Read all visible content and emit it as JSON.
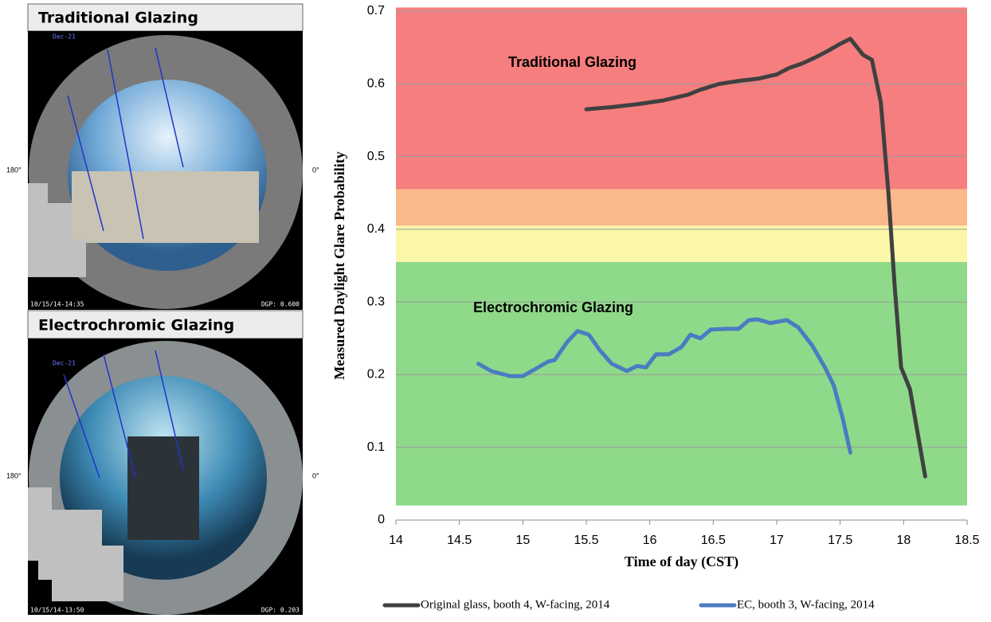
{
  "panels": [
    {
      "label": "Traditional Glazing",
      "date_label": "Dec-21",
      "left_angle": "180°",
      "right_angle": "0°",
      "timestamp": "10/15/14-14:35",
      "dgp": "DGP: 0.600"
    },
    {
      "label": "Electrochromic Glazing",
      "date_label": "Dec-21",
      "left_angle": "180°",
      "right_angle": "0°",
      "timestamp": "10/15/14-13:50",
      "dgp": "DGP: 0.203"
    }
  ],
  "chart_data": {
    "type": "line",
    "x_label": "Time of day (CST)",
    "y_label": "Measured Daylight Glare Probability",
    "annotations": [
      "Traditional Glazing",
      "Electrochromic Glazing"
    ],
    "xlim": [
      14,
      18.5
    ],
    "xticks": [
      14,
      14.5,
      15,
      15.5,
      16,
      16.5,
      17,
      17.5,
      18,
      18.5
    ],
    "ylim": [
      0,
      0.7
    ],
    "yticks": [
      0,
      0.1,
      0.2,
      0.3,
      0.4,
      0.5,
      0.6,
      0.7
    ],
    "grid": true,
    "legend": "bottom",
    "bands": [
      {
        "from": 0.02,
        "to": 0.355,
        "color": "#8fd98a"
      },
      {
        "from": 0.355,
        "to": 0.405,
        "color": "#fbf7a8"
      },
      {
        "from": 0.405,
        "to": 0.455,
        "color": "#fbb88a"
      },
      {
        "from": 0.455,
        "to": 0.705,
        "color": "#f67e7e"
      }
    ],
    "series": [
      {
        "name": "Original glass, booth 4, W-facing, 2014",
        "color": "#404040",
        "x": [
          15.5,
          15.7,
          15.9,
          16.1,
          16.3,
          16.4,
          16.55,
          16.7,
          16.85,
          17.0,
          17.1,
          17.2,
          17.3,
          17.4,
          17.5,
          17.58,
          17.68,
          17.75,
          17.82,
          17.88,
          17.93,
          17.98,
          18.05,
          18.17
        ],
        "values": [
          0.565,
          0.568,
          0.572,
          0.577,
          0.585,
          0.592,
          0.6,
          0.604,
          0.607,
          0.613,
          0.622,
          0.628,
          0.636,
          0.645,
          0.655,
          0.662,
          0.64,
          0.633,
          0.575,
          0.45,
          0.32,
          0.21,
          0.18,
          0.06
        ]
      },
      {
        "name": "EC, booth 3, W-facing, 2014",
        "color": "#4a7cc2",
        "x": [
          14.65,
          14.75,
          14.9,
          15.0,
          15.1,
          15.2,
          15.25,
          15.35,
          15.43,
          15.52,
          15.6,
          15.7,
          15.82,
          15.9,
          15.97,
          16.05,
          16.15,
          16.25,
          16.32,
          16.4,
          16.48,
          16.6,
          16.7,
          16.78,
          16.85,
          16.95,
          17.08,
          17.17,
          17.28,
          17.38,
          17.45,
          17.52,
          17.58
        ],
        "values": [
          0.215,
          0.205,
          0.198,
          0.198,
          0.208,
          0.218,
          0.22,
          0.245,
          0.26,
          0.255,
          0.235,
          0.215,
          0.205,
          0.212,
          0.21,
          0.228,
          0.228,
          0.238,
          0.255,
          0.25,
          0.262,
          0.263,
          0.263,
          0.275,
          0.276,
          0.271,
          0.275,
          0.265,
          0.24,
          0.21,
          0.185,
          0.14,
          0.093
        ]
      }
    ]
  }
}
